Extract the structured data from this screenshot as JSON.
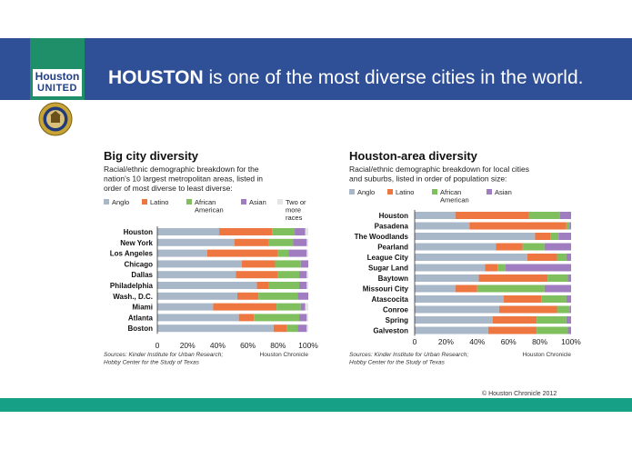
{
  "logo": {
    "line1": "Houston",
    "line2": "UNITED"
  },
  "headline": {
    "bold": "HOUSTON",
    "rest": " is one of the most diverse cities in the world."
  },
  "credit": "© Houston Chronicle 2012",
  "colors": {
    "banner": "#2f4f96",
    "logo_bg": "#1f8f6a",
    "footer": "#16a085",
    "anglo": "#a9b8c9",
    "latino": "#ee7640",
    "african_american": "#7fbf5e",
    "asian": "#a07cc1",
    "two_or_more": "#e4e4e4"
  },
  "chart_data": [
    {
      "type": "bar",
      "orientation": "horizontal",
      "stacked": true,
      "title": "Big city diversity",
      "subtitle": [
        "Racial/ethnic demographic breakdown for the",
        "nation's 10 largest metropolitan areas, listed in",
        "order of most diverse to least diverse:"
      ],
      "legend": [
        "Anglo",
        "Latino",
        "African American",
        "Asian",
        "Two or more races"
      ],
      "categories": [
        "Houston",
        "New York",
        "Los Angeles",
        "Chicago",
        "Dallas",
        "Philadelphia",
        "Wash., D.C.",
        "Miami",
        "Atlanta",
        "Boston"
      ],
      "series": [
        {
          "name": "Anglo",
          "values": [
            41,
            51,
            33,
            56,
            52,
            66,
            53,
            37,
            54,
            77
          ]
        },
        {
          "name": "Latino",
          "values": [
            35,
            23,
            47,
            22,
            28,
            8,
            14,
            42,
            10,
            9
          ]
        },
        {
          "name": "African American",
          "values": [
            15,
            16,
            7,
            17,
            14,
            20,
            26,
            16,
            30,
            7
          ]
        },
        {
          "name": "Asian",
          "values": [
            7,
            9,
            12,
            5,
            5,
            5,
            7,
            3,
            5,
            6
          ]
        },
        {
          "name": "Two or more races",
          "values": [
            2,
            1,
            1,
            0,
            1,
            1,
            0,
            2,
            1,
            1
          ]
        }
      ],
      "xticks": [
        "0",
        "20%",
        "40%",
        "60%",
        "80%",
        "100%"
      ],
      "xlim": [
        0,
        100
      ],
      "source": [
        "Sources: Kinder Institute for Urban Research;",
        "Hobby Center for the Study of Texas"
      ],
      "publisher": "Houston Chronicle"
    },
    {
      "type": "bar",
      "orientation": "horizontal",
      "stacked": true,
      "title": "Houston-area diversity",
      "subtitle": [
        "Racial/ethnic demographic breakdown for local cities",
        "and suburbs, listed in order of population size:"
      ],
      "legend": [
        "Anglo",
        "Latino",
        "African American",
        "Asian"
      ],
      "categories": [
        "Houston",
        "Pasadena",
        "The Woodlands",
        "Pearland",
        "League City",
        "Sugar Land",
        "Baytown",
        "Missouri City",
        "Atascocita",
        "Conroe",
        "Spring",
        "Galveston"
      ],
      "series": [
        {
          "name": "Anglo",
          "values": [
            26,
            35,
            77,
            52,
            72,
            45,
            41,
            26,
            57,
            54,
            50,
            47
          ]
        },
        {
          "name": "Latino",
          "values": [
            47,
            62,
            10,
            17,
            19,
            8,
            44,
            14,
            24,
            37,
            28,
            31
          ]
        },
        {
          "name": "African American",
          "values": [
            20,
            2,
            5,
            14,
            6,
            5,
            13,
            43,
            16,
            8,
            19,
            20
          ]
        },
        {
          "name": "Asian",
          "values": [
            7,
            1,
            8,
            17,
            3,
            42,
            2,
            17,
            3,
            1,
            3,
            2
          ]
        }
      ],
      "xticks": [
        "0",
        "20%",
        "40%",
        "60%",
        "80%",
        "100%"
      ],
      "xlim": [
        0,
        100
      ],
      "source": [
        "Sources: Kinder Institute for Urban Research;",
        "Hobby Center for the Study of Texas"
      ],
      "publisher": "Houston Chronicle"
    }
  ]
}
